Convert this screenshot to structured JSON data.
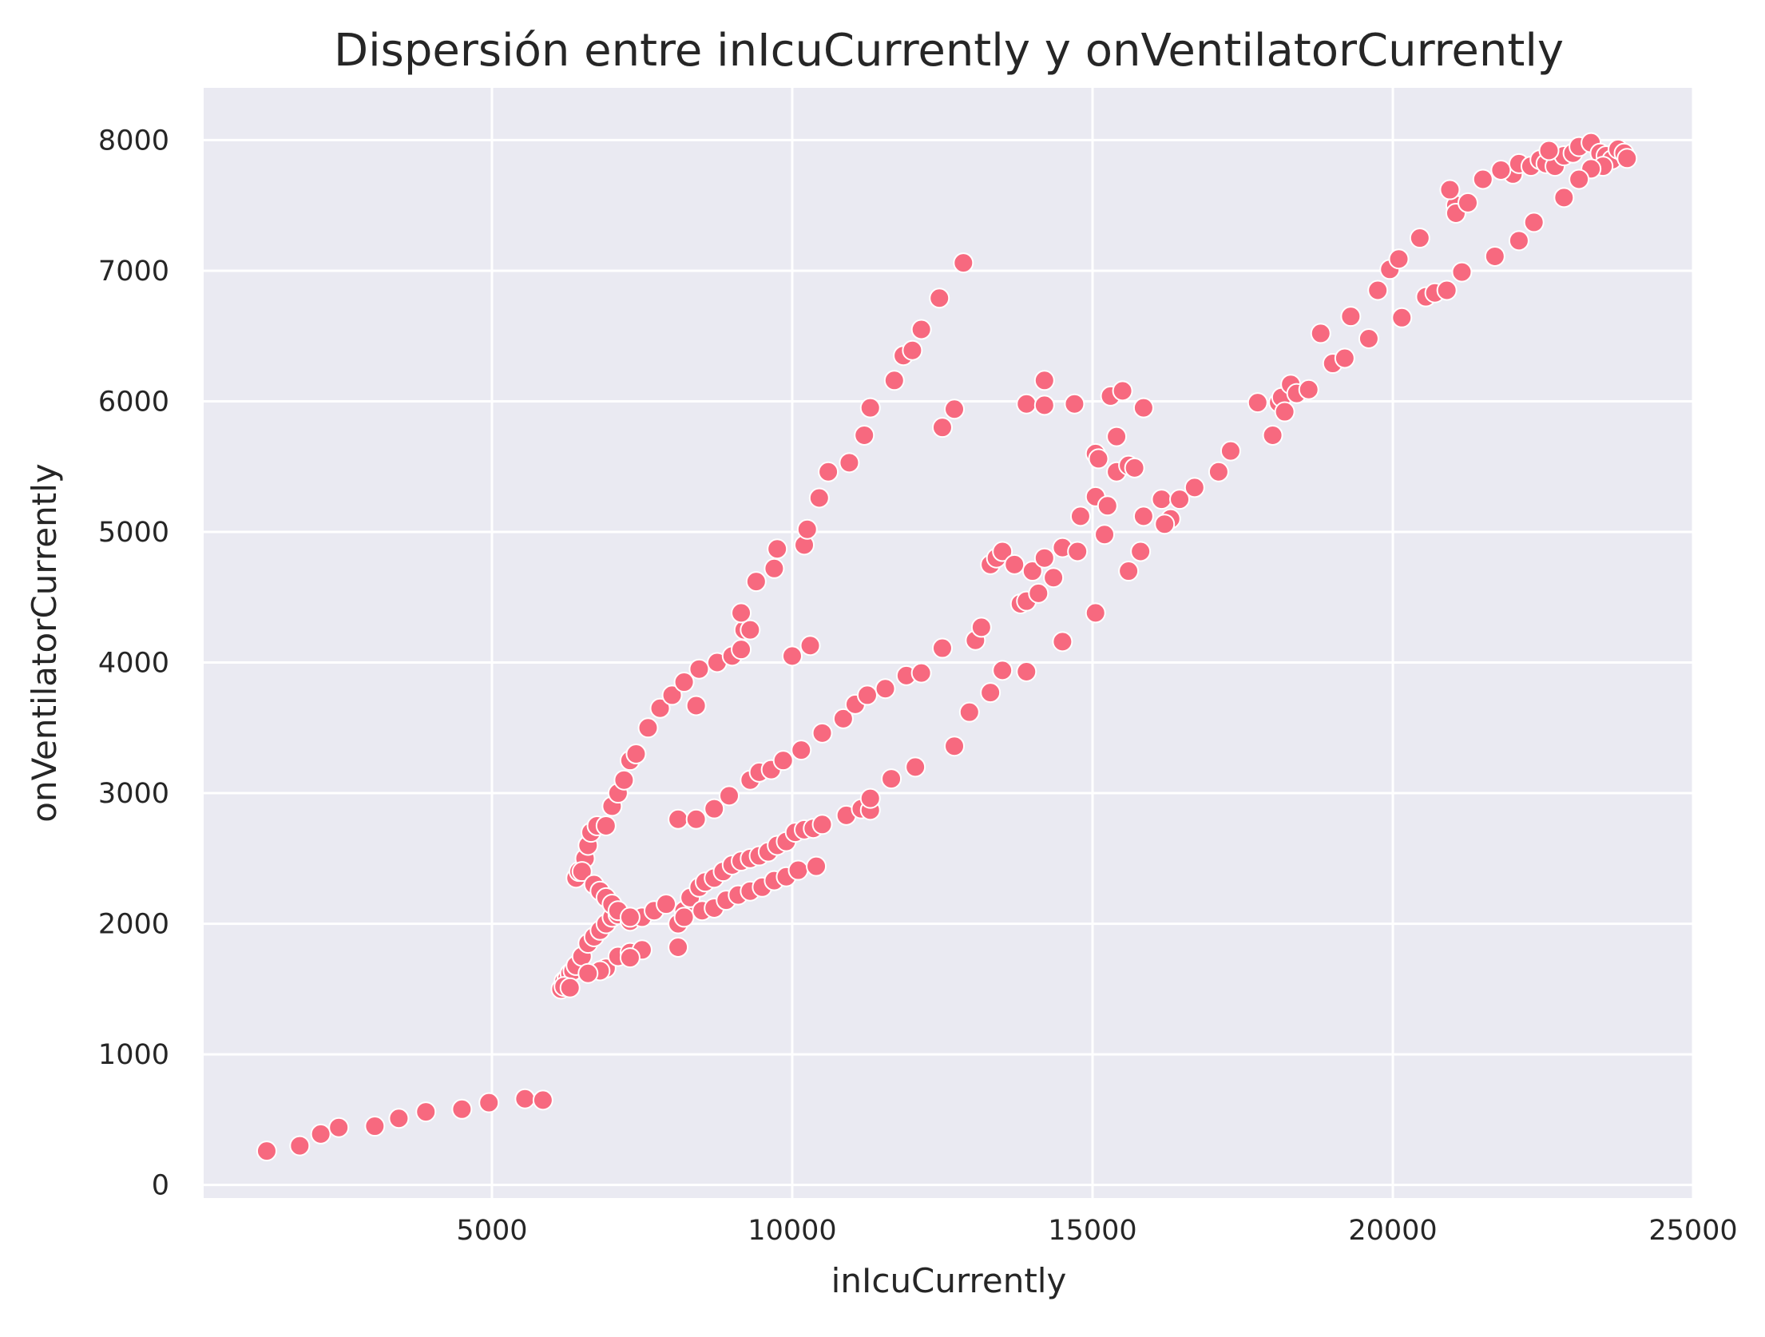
{
  "chart_data": {
    "type": "scatter",
    "title": "Dispersión entre inIcuCurrently y onVentilatorCurrently",
    "xlabel": "inIcuCurrently",
    "ylabel": "onVentilatorCurrently",
    "xlim": [
      200,
      25000
    ],
    "ylim": [
      -100,
      8400
    ],
    "xticks": [
      5000,
      10000,
      15000,
      20000,
      25000
    ],
    "yticks": [
      0,
      1000,
      2000,
      3000,
      4000,
      5000,
      6000,
      7000,
      8000
    ],
    "grid": true,
    "background_color": "#eaeaf2",
    "point_color": "#f7697f",
    "points": [
      [
        1250,
        260
      ],
      [
        1800,
        300
      ],
      [
        2150,
        390
      ],
      [
        2450,
        440
      ],
      [
        3050,
        450
      ],
      [
        3450,
        510
      ],
      [
        3900,
        560
      ],
      [
        4500,
        580
      ],
      [
        4950,
        630
      ],
      [
        5550,
        660
      ],
      [
        5850,
        650
      ],
      [
        6150,
        1500
      ],
      [
        6200,
        1560
      ],
      [
        6250,
        1580
      ],
      [
        6300,
        1620
      ],
      [
        6350,
        1640
      ],
      [
        6200,
        1520
      ],
      [
        6300,
        1510
      ],
      [
        6400,
        1680
      ],
      [
        6500,
        1750
      ],
      [
        6600,
        1850
      ],
      [
        6700,
        1900
      ],
      [
        6800,
        1950
      ],
      [
        6900,
        2000
      ],
      [
        7000,
        2050
      ],
      [
        7100,
        2070
      ],
      [
        7300,
        2020
      ],
      [
        7500,
        2050
      ],
      [
        7700,
        2100
      ],
      [
        7900,
        2150
      ],
      [
        8100,
        2000
      ],
      [
        8200,
        2100
      ],
      [
        8300,
        2200
      ],
      [
        8450,
        2280
      ],
      [
        8550,
        2320
      ],
      [
        8700,
        2350
      ],
      [
        8850,
        2400
      ],
      [
        9000,
        2450
      ],
      [
        9150,
        2480
      ],
      [
        9300,
        2500
      ],
      [
        9450,
        2520
      ],
      [
        9600,
        2550
      ],
      [
        9750,
        2600
      ],
      [
        9900,
        2630
      ],
      [
        10050,
        2700
      ],
      [
        10200,
        2720
      ],
      [
        10350,
        2730
      ],
      [
        10500,
        2760
      ],
      [
        6400,
        2350
      ],
      [
        6450,
        2400
      ],
      [
        6550,
        2500
      ],
      [
        6600,
        2600
      ],
      [
        6650,
        2700
      ],
      [
        6750,
        2750
      ],
      [
        6900,
        2750
      ],
      [
        7000,
        2900
      ],
      [
        7100,
        3000
      ],
      [
        7200,
        3100
      ],
      [
        7300,
        3250
      ],
      [
        7400,
        3300
      ],
      [
        7600,
        3500
      ],
      [
        7800,
        3650
      ],
      [
        8000,
        3750
      ],
      [
        8200,
        3850
      ],
      [
        8450,
        3950
      ],
      [
        8400,
        3670
      ],
      [
        8750,
        4000
      ],
      [
        9000,
        4050
      ],
      [
        9150,
        4100
      ],
      [
        9200,
        4250
      ],
      [
        9300,
        4250
      ],
      [
        9150,
        4380
      ],
      [
        9400,
        4620
      ],
      [
        9700,
        4720
      ],
      [
        9750,
        4870
      ],
      [
        10200,
        4900
      ],
      [
        10250,
        5020
      ],
      [
        10450,
        5260
      ],
      [
        10600,
        5460
      ],
      [
        10950,
        5530
      ],
      [
        11200,
        5740
      ],
      [
        11300,
        5950
      ],
      [
        11700,
        6160
      ],
      [
        11850,
        6350
      ],
      [
        12000,
        6390
      ],
      [
        12150,
        6550
      ],
      [
        12450,
        6790
      ],
      [
        12850,
        7060
      ],
      [
        10000,
        4050
      ],
      [
        10300,
        4130
      ],
      [
        12500,
        5800
      ],
      [
        12700,
        5940
      ],
      [
        6500,
        2400
      ],
      [
        6700,
        2300
      ],
      [
        6800,
        2250
      ],
      [
        6900,
        2200
      ],
      [
        7000,
        2150
      ],
      [
        7100,
        2100
      ],
      [
        7300,
        2050
      ],
      [
        8100,
        2800
      ],
      [
        8400,
        2800
      ],
      [
        8700,
        2880
      ],
      [
        8950,
        2980
      ],
      [
        9300,
        3100
      ],
      [
        9450,
        3160
      ],
      [
        9650,
        3180
      ],
      [
        9850,
        3250
      ],
      [
        10150,
        3330
      ],
      [
        10500,
        3460
      ],
      [
        10850,
        3570
      ],
      [
        11050,
        3680
      ],
      [
        11250,
        3750
      ],
      [
        11550,
        3800
      ],
      [
        11900,
        3900
      ],
      [
        12150,
        3920
      ],
      [
        12500,
        4110
      ],
      [
        13050,
        4170
      ],
      [
        13150,
        4270
      ],
      [
        13300,
        4750
      ],
      [
        13400,
        4800
      ],
      [
        13500,
        4850
      ],
      [
        13700,
        4750
      ],
      [
        13800,
        4450
      ],
      [
        13900,
        4470
      ],
      [
        14000,
        4700
      ],
      [
        14100,
        4530
      ],
      [
        14200,
        4800
      ],
      [
        14350,
        4650
      ],
      [
        14500,
        4880
      ],
      [
        14750,
        4850
      ],
      [
        14800,
        5120
      ],
      [
        15050,
        5600
      ],
      [
        15100,
        5560
      ],
      [
        15050,
        5270
      ],
      [
        15250,
        5200
      ],
      [
        15400,
        5730
      ],
      [
        15400,
        5460
      ],
      [
        15600,
        5510
      ],
      [
        15700,
        5490
      ],
      [
        15850,
        5120
      ],
      [
        15800,
        4850
      ],
      [
        15600,
        4700
      ],
      [
        13900,
        5980
      ],
      [
        14200,
        5970
      ],
      [
        14200,
        6160
      ],
      [
        14700,
        5980
      ],
      [
        15300,
        6040
      ],
      [
        15500,
        6080
      ],
      [
        15850,
        5950
      ],
      [
        16150,
        5250
      ],
      [
        16300,
        5100
      ],
      [
        16200,
        5060
      ],
      [
        16450,
        5250
      ],
      [
        16700,
        5340
      ],
      [
        17100,
        5460
      ],
      [
        17300,
        5620
      ],
      [
        17750,
        5990
      ],
      [
        18000,
        5740
      ],
      [
        18100,
        5990
      ],
      [
        18150,
        6030
      ],
      [
        18200,
        5920
      ],
      [
        18300,
        6130
      ],
      [
        18400,
        6060
      ],
      [
        18600,
        6090
      ],
      [
        18800,
        6520
      ],
      [
        19000,
        6290
      ],
      [
        19200,
        6330
      ],
      [
        19300,
        6650
      ],
      [
        19600,
        6480
      ],
      [
        19750,
        6850
      ],
      [
        19950,
        7010
      ],
      [
        20100,
        7090
      ],
      [
        20450,
        7250
      ],
      [
        20150,
        6640
      ],
      [
        20550,
        6800
      ],
      [
        20700,
        6830
      ],
      [
        20900,
        6850
      ],
      [
        21150,
        6990
      ],
      [
        21050,
        7500
      ],
      [
        21050,
        7440
      ],
      [
        21250,
        7520
      ],
      [
        20950,
        7620
      ],
      [
        21500,
        7700
      ],
      [
        21700,
        7110
      ],
      [
        22100,
        7230
      ],
      [
        22350,
        7370
      ],
      [
        22850,
        7560
      ],
      [
        22000,
        7740
      ],
      [
        21800,
        7770
      ],
      [
        22100,
        7820
      ],
      [
        22300,
        7800
      ],
      [
        22450,
        7850
      ],
      [
        22550,
        7820
      ],
      [
        22700,
        7800
      ],
      [
        22850,
        7880
      ],
      [
        23000,
        7900
      ],
      [
        23100,
        7950
      ],
      [
        23300,
        7980
      ],
      [
        23450,
        7900
      ],
      [
        23550,
        7880
      ],
      [
        23650,
        7850
      ],
      [
        23750,
        7930
      ],
      [
        23850,
        7900
      ],
      [
        23900,
        7860
      ],
      [
        23500,
        7800
      ],
      [
        23300,
        7780
      ],
      [
        23100,
        7700
      ],
      [
        22600,
        7920
      ],
      [
        6900,
        1660
      ],
      [
        7100,
        1750
      ],
      [
        7300,
        1780
      ],
      [
        7500,
        1800
      ],
      [
        7300,
        1740
      ],
      [
        6800,
        1640
      ],
      [
        6600,
        1620
      ],
      [
        8100,
        1820
      ],
      [
        8200,
        2050
      ],
      [
        8500,
        2100
      ],
      [
        8700,
        2120
      ],
      [
        8900,
        2180
      ],
      [
        9100,
        2220
      ],
      [
        9300,
        2250
      ],
      [
        9500,
        2280
      ],
      [
        9700,
        2330
      ],
      [
        9900,
        2360
      ],
      [
        10100,
        2410
      ],
      [
        10400,
        2440
      ],
      [
        10900,
        2830
      ],
      [
        11150,
        2880
      ],
      [
        11300,
        2870
      ],
      [
        11300,
        2960
      ],
      [
        11650,
        3110
      ],
      [
        12050,
        3200
      ],
      [
        12700,
        3360
      ],
      [
        12950,
        3620
      ],
      [
        13300,
        3770
      ],
      [
        13500,
        3940
      ],
      [
        13900,
        3930
      ],
      [
        14500,
        4160
      ],
      [
        15050,
        4380
      ],
      [
        15200,
        4980
      ]
    ]
  }
}
